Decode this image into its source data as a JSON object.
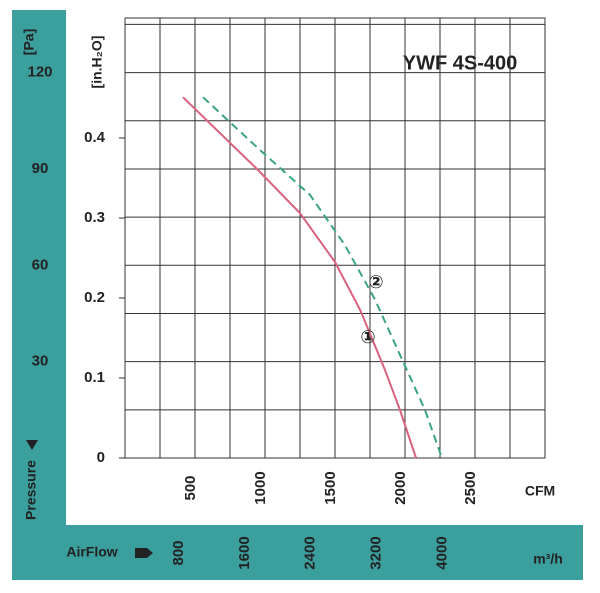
{
  "chart_data": {
    "type": "line",
    "title": "YWF 4S-400",
    "xlabel": "CFM",
    "ylabel": "[in.H₂O]",
    "y2label": "[Pa]",
    "x2label": "m³/h",
    "side_label": "Pressure",
    "bottom_label": "AirFlow",
    "xlim": [
      0,
      3000
    ],
    "xticks": [
      500,
      1000,
      1500,
      2000,
      2500
    ],
    "ylim": [
      0,
      0.55
    ],
    "yticks": [
      0,
      0.1,
      0.2,
      0.3,
      0.4
    ],
    "y2lim": [
      0,
      137
    ],
    "y2ticks": [
      30,
      60,
      90,
      120
    ],
    "x2lim": [
      0,
      5097
    ],
    "x2ticks": [
      800,
      1600,
      2400,
      3200,
      4000
    ],
    "grid": true,
    "series": [
      {
        "name": "①",
        "color": "#d9627e",
        "dash": false,
        "x": [
          414,
          950,
          1250,
          1500,
          1680,
          1857,
          1964,
          2079
        ],
        "values": [
          0.451,
          0.36,
          0.306,
          0.245,
          0.185,
          0.11,
          0.06,
          0
        ]
      },
      {
        "name": "②",
        "color": "#3aa57a",
        "dash": true,
        "x": [
          557,
          964,
          1321,
          1571,
          1786,
          1964,
          2143,
          2264
        ],
        "values": [
          0.451,
          0.385,
          0.329,
          0.266,
          0.198,
          0.129,
          0.06,
          0
        ]
      }
    ]
  }
}
